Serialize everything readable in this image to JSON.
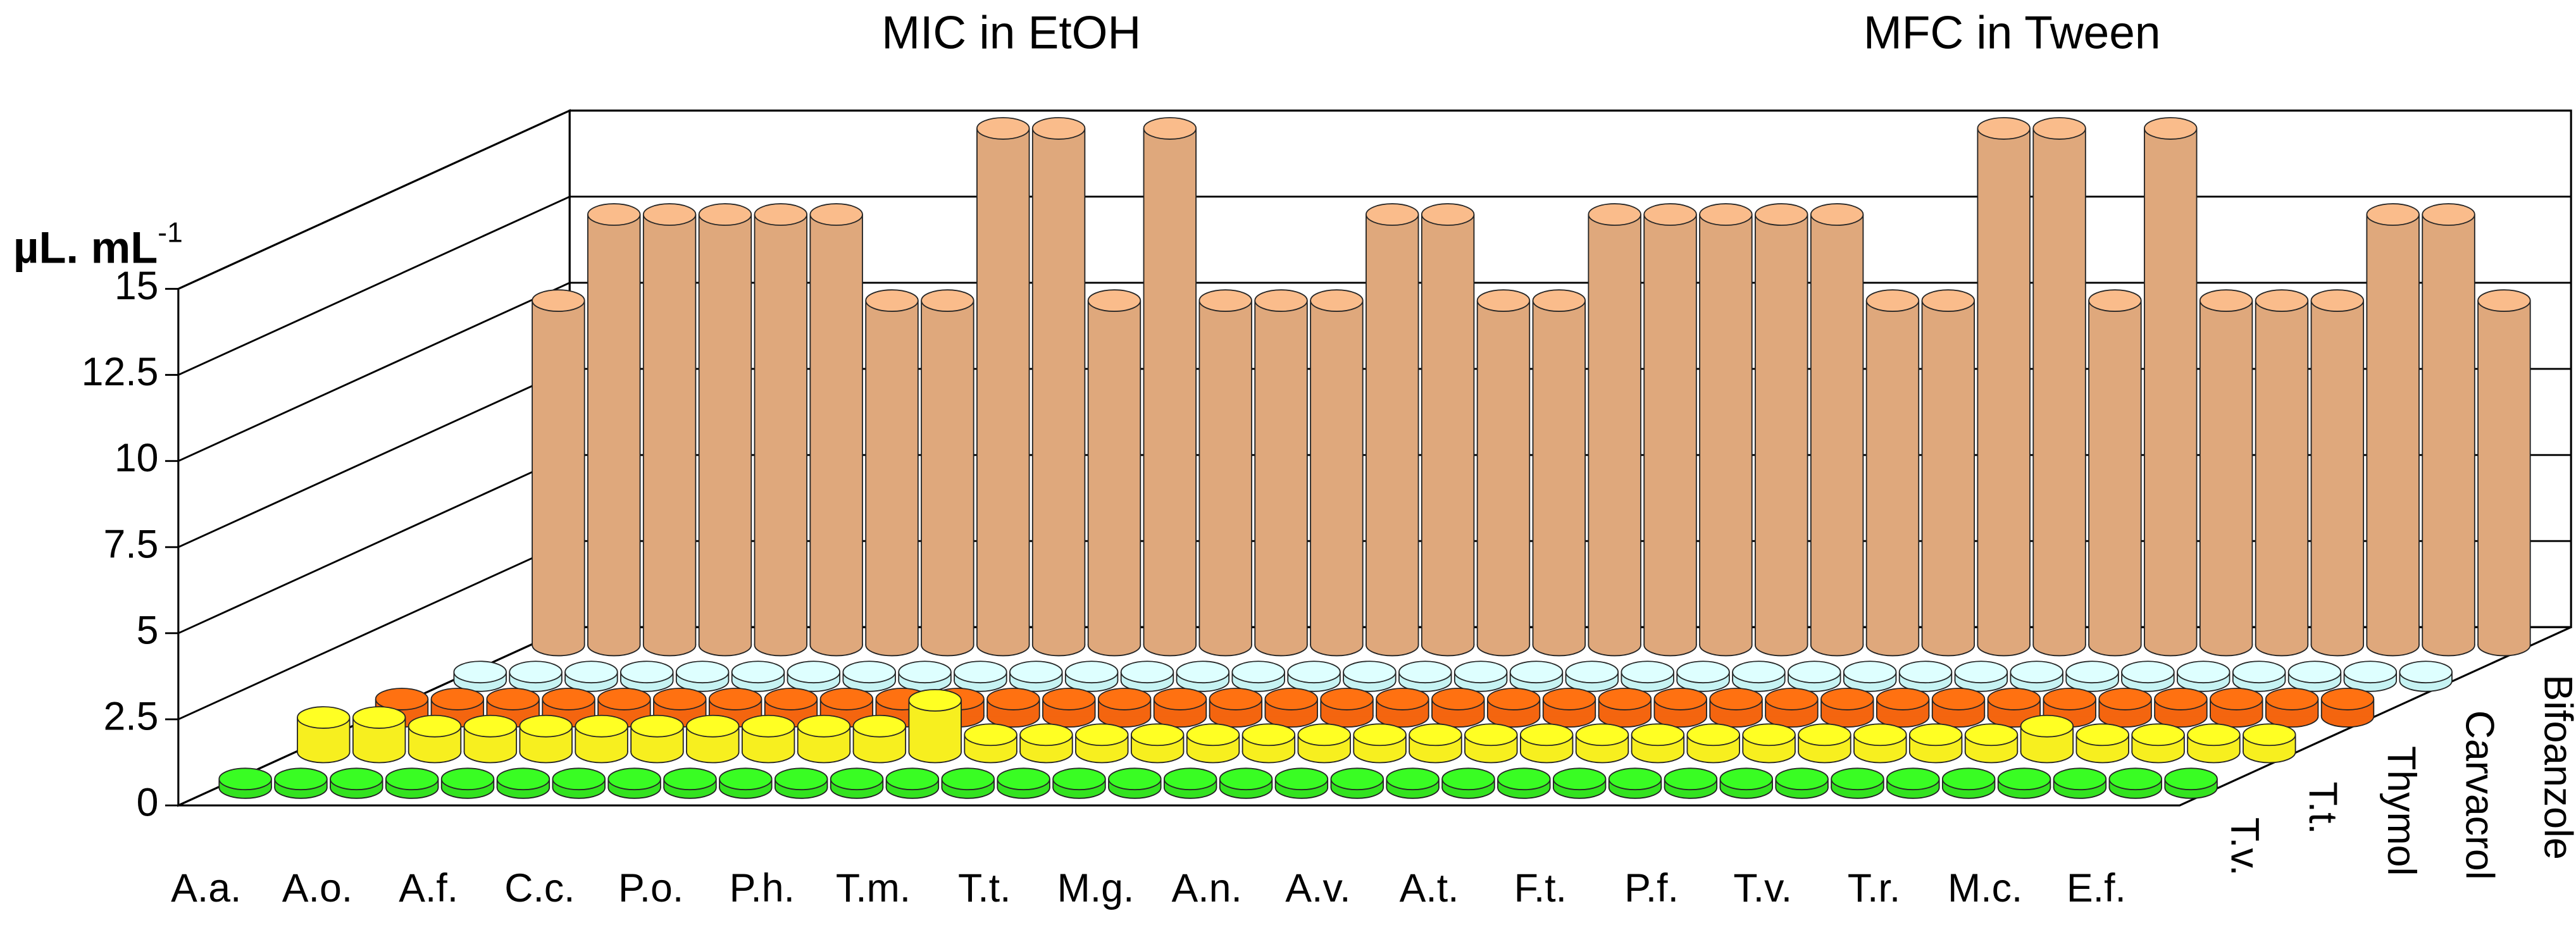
{
  "chart_data": {
    "type": "bar3d",
    "group_titles": [
      "MIC in EtOH",
      "MFC in Tween"
    ],
    "y_label": {
      "text": "µL. mL",
      "superscript": "-1"
    },
    "categories": [
      "A.a.",
      null,
      "A.o.",
      null,
      "A.f.",
      null,
      "C.c.",
      null,
      "P.o.",
      null,
      "P.h.",
      null,
      "T.m.",
      null,
      "T.t.",
      null,
      "M.g.",
      null,
      "A.n.",
      null,
      "A.v.",
      null,
      "A.t.",
      null,
      "F.t.",
      null,
      "P.f.",
      null,
      "T.v.",
      null,
      "T.r.",
      null,
      "M.c.",
      null,
      "E.f.",
      null
    ],
    "series": [
      {
        "name": "T.v.",
        "color": "#33e21f",
        "values": [
          0.25,
          0.25,
          0.25,
          0.25,
          0.25,
          0.25,
          0.25,
          0.25,
          0.25,
          0.25,
          0.25,
          0.25,
          0.25,
          0.25,
          0.25,
          0.25,
          0.25,
          0.25,
          0.25,
          0.25,
          0.25,
          0.25,
          0.25,
          0.25,
          0.25,
          0.25,
          0.25,
          0.25,
          0.25,
          0.25,
          0.25,
          0.25,
          0.25,
          0.25,
          0.25,
          0.25
        ]
      },
      {
        "name": "T.t.",
        "color": "#f7ef1f",
        "values": [
          1,
          1,
          0.75,
          0.75,
          0.75,
          0.75,
          0.75,
          0.75,
          0.75,
          0.75,
          0.75,
          1.5,
          0.5,
          0.5,
          0.5,
          0.5,
          0.5,
          0.5,
          0.5,
          0.5,
          0.5,
          0.5,
          0.5,
          0.5,
          0.5,
          0.5,
          0.5,
          0.5,
          0.5,
          0.5,
          0.5,
          0.75,
          0.5,
          0.5,
          0.5,
          0.5
        ]
      },
      {
        "name": "Thymol",
        "color": "#f4650f",
        "values": [
          0.5,
          0.5,
          0.5,
          0.5,
          0.5,
          0.5,
          0.5,
          0.5,
          0.5,
          0.5,
          0.5,
          0.5,
          0.5,
          0.5,
          0.5,
          0.5,
          0.5,
          0.5,
          0.5,
          0.5,
          0.5,
          0.5,
          0.5,
          0.5,
          0.5,
          0.5,
          0.5,
          0.5,
          0.5,
          0.5,
          0.5,
          0.5,
          0.5,
          0.5,
          0.5,
          0.5
        ]
      },
      {
        "name": "Carvacrol",
        "color": "#c6f3f3",
        "values": [
          0.25,
          0.25,
          0.25,
          0.25,
          0.25,
          0.25,
          0.25,
          0.25,
          0.25,
          0.25,
          0.25,
          0.25,
          0.25,
          0.25,
          0.25,
          0.25,
          0.25,
          0.25,
          0.25,
          0.25,
          0.25,
          0.25,
          0.25,
          0.25,
          0.25,
          0.25,
          0.25,
          0.25,
          0.25,
          0.25,
          0.25,
          0.25,
          0.25,
          0.25,
          0.25,
          0.25
        ]
      },
      {
        "name": "Bifoanzole",
        "color": "#dfa87c",
        "values": [
          10,
          12.5,
          12.5,
          12.5,
          12.5,
          12.5,
          10,
          10,
          15,
          15,
          10,
          15,
          10,
          10,
          10,
          12.5,
          12.5,
          10,
          10,
          12.5,
          12.5,
          12.5,
          12.5,
          12.5,
          10,
          10,
          15,
          15,
          10,
          15,
          10,
          10,
          10,
          12.5,
          12.5,
          10
        ]
      }
    ],
    "ylim": [
      0,
      15
    ],
    "yticks": [
      0,
      2.5,
      5,
      7.5,
      10,
      12.5,
      15
    ],
    "grid": true
  }
}
